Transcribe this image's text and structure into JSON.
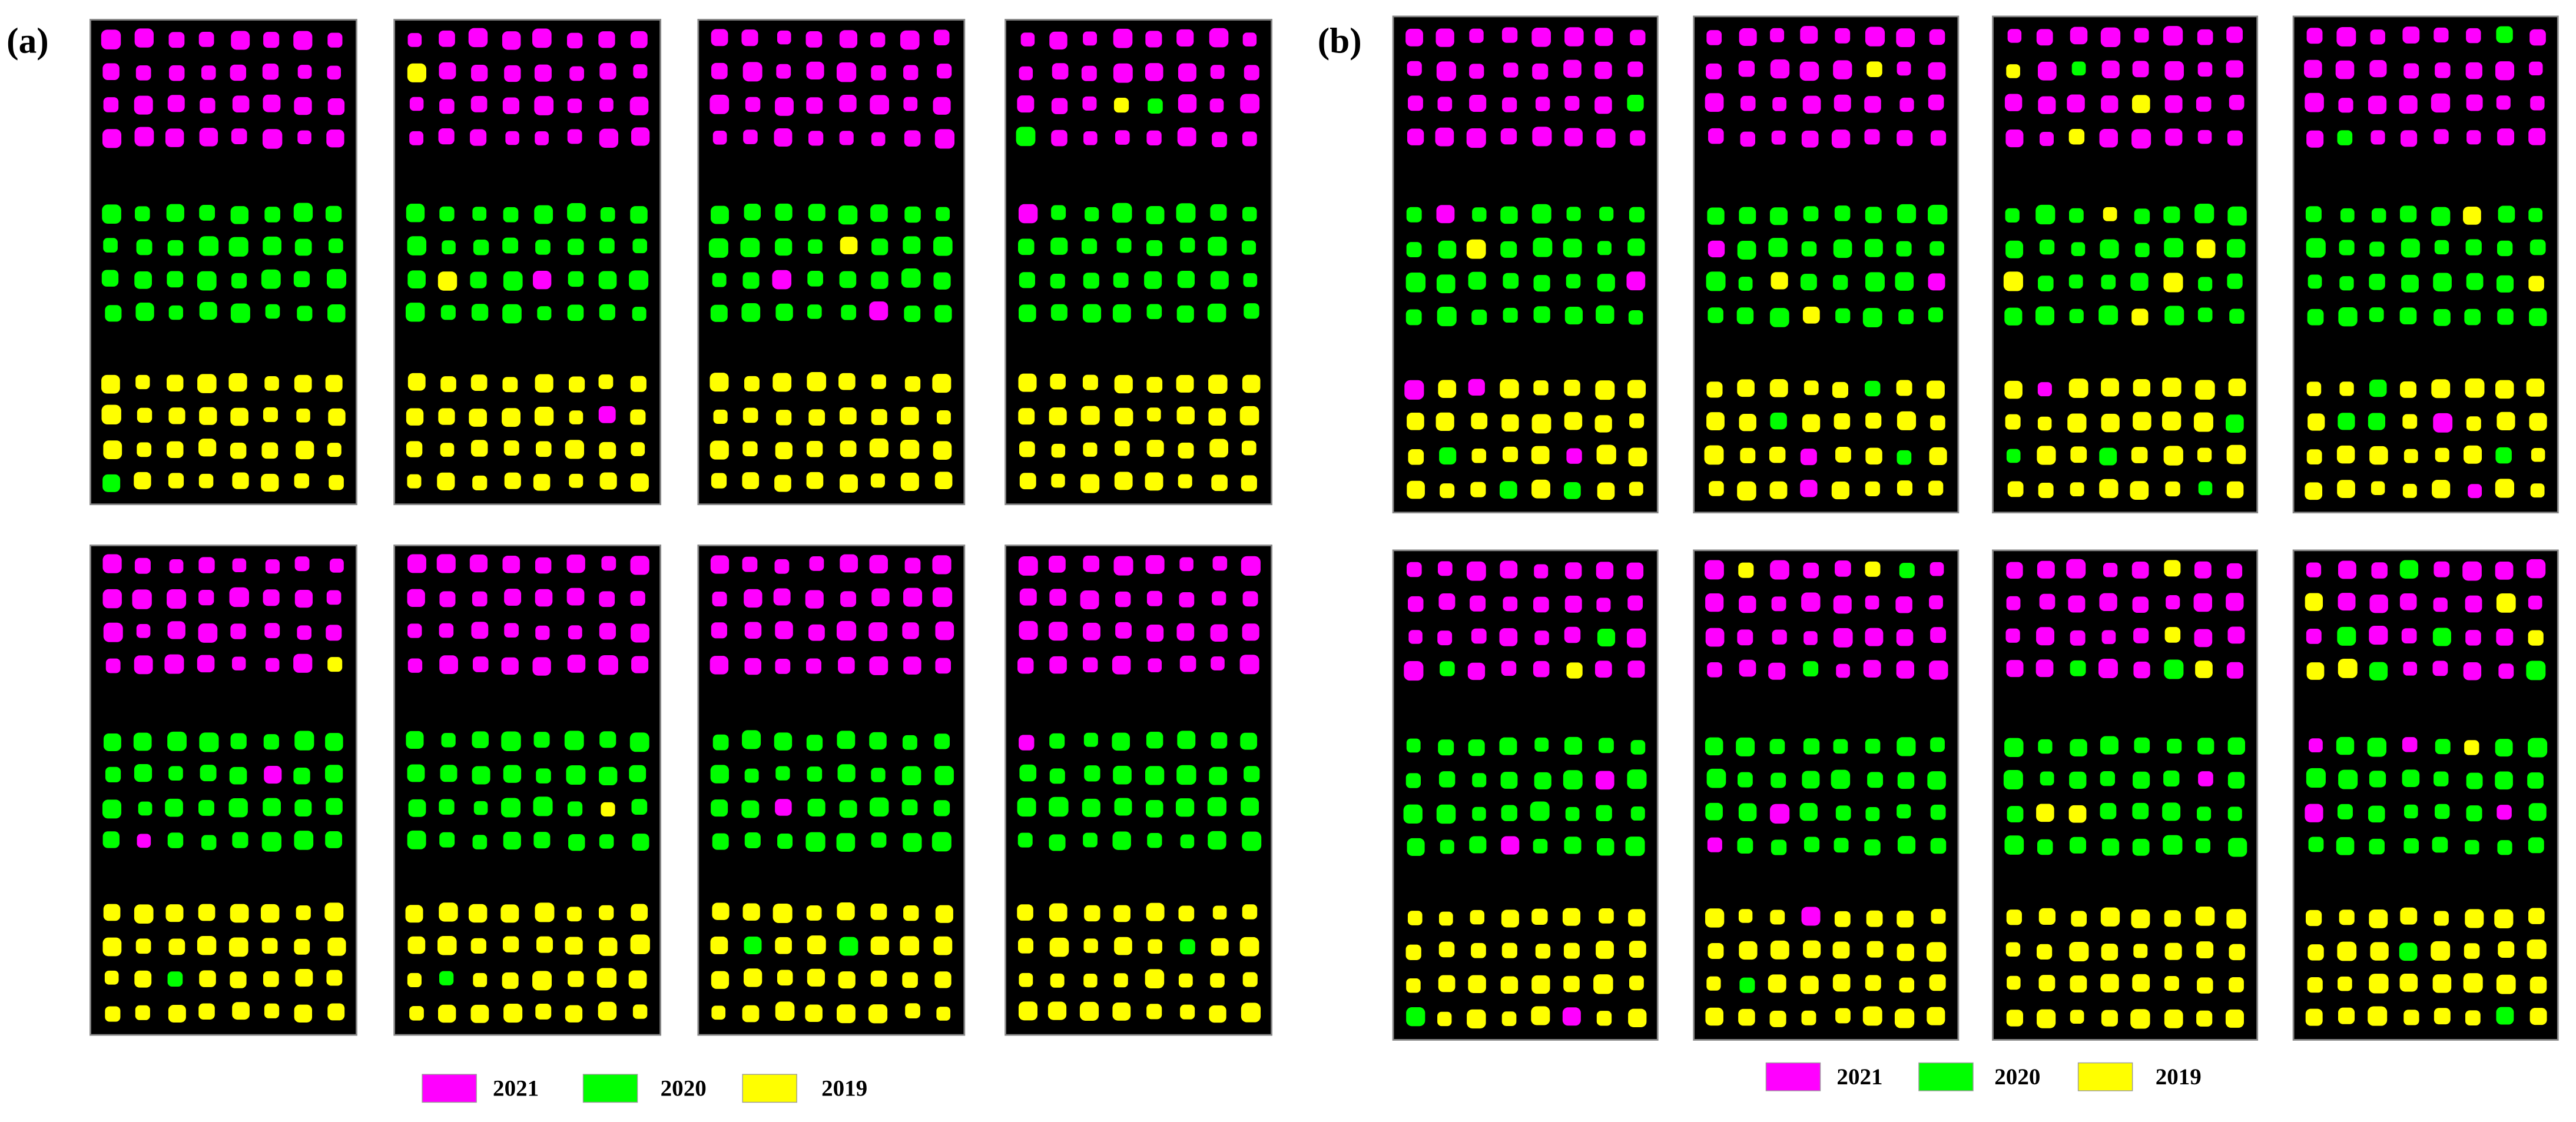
{
  "panels": [
    {
      "label": "(a)",
      "legend": [
        {
          "label": "2021",
          "color": "#ff00ff"
        },
        {
          "label": "2020",
          "color": "#00ff00"
        },
        {
          "label": "2019",
          "color": "#ffff00"
        }
      ]
    },
    {
      "label": "(b)",
      "legend": [
        {
          "label": "2021",
          "color": "#ff00ff"
        },
        {
          "label": "2020",
          "color": "#00ff00"
        },
        {
          "label": "2019",
          "color": "#ffff00"
        }
      ]
    }
  ]
}
